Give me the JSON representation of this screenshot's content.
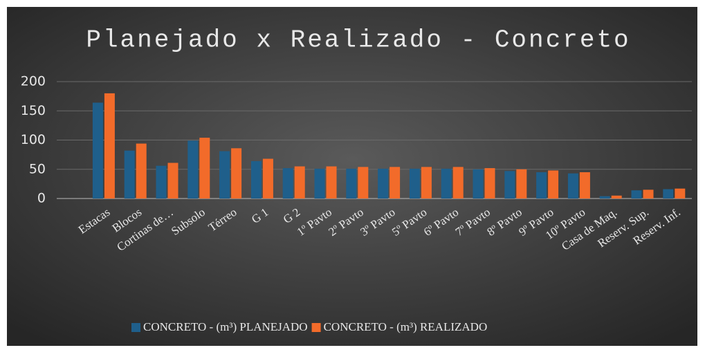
{
  "chart_data": {
    "type": "bar",
    "title": "Planejado x Realizado - Concreto",
    "categories": [
      "Estacas",
      "Blocos",
      "Cortinas de…",
      "Subsolo",
      "Térreo",
      "G 1",
      "G 2",
      "1º Pavto",
      "2º Pavto",
      "3º Pavto",
      "5º Pavto",
      "6º Pavto",
      "7º Pavto",
      "8º Pavto",
      "9º Pavto",
      "10º Pavto",
      "Casa de Maq.",
      "Reserv. Sup.",
      "Reserv. Inf."
    ],
    "series": [
      {
        "name": "CONCRETO - (m³) PLANEJADO",
        "color": "#1f5f8b",
        "values": [
          164,
          82,
          56,
          99,
          81,
          64,
          52,
          51,
          51,
          51,
          51,
          51,
          50,
          47,
          45,
          43,
          4,
          14,
          16
        ]
      },
      {
        "name": "CONCRETO - (m³) REALIZADO",
        "color": "#f26b2a",
        "values": [
          180,
          94,
          61,
          104,
          86,
          68,
          55,
          55,
          54,
          54,
          54,
          54,
          52,
          50,
          48,
          45,
          5,
          15,
          17
        ]
      }
    ],
    "ylim": [
      0,
      200
    ],
    "yticks": [
      0,
      50,
      100,
      150,
      200
    ],
    "grid": true
  }
}
